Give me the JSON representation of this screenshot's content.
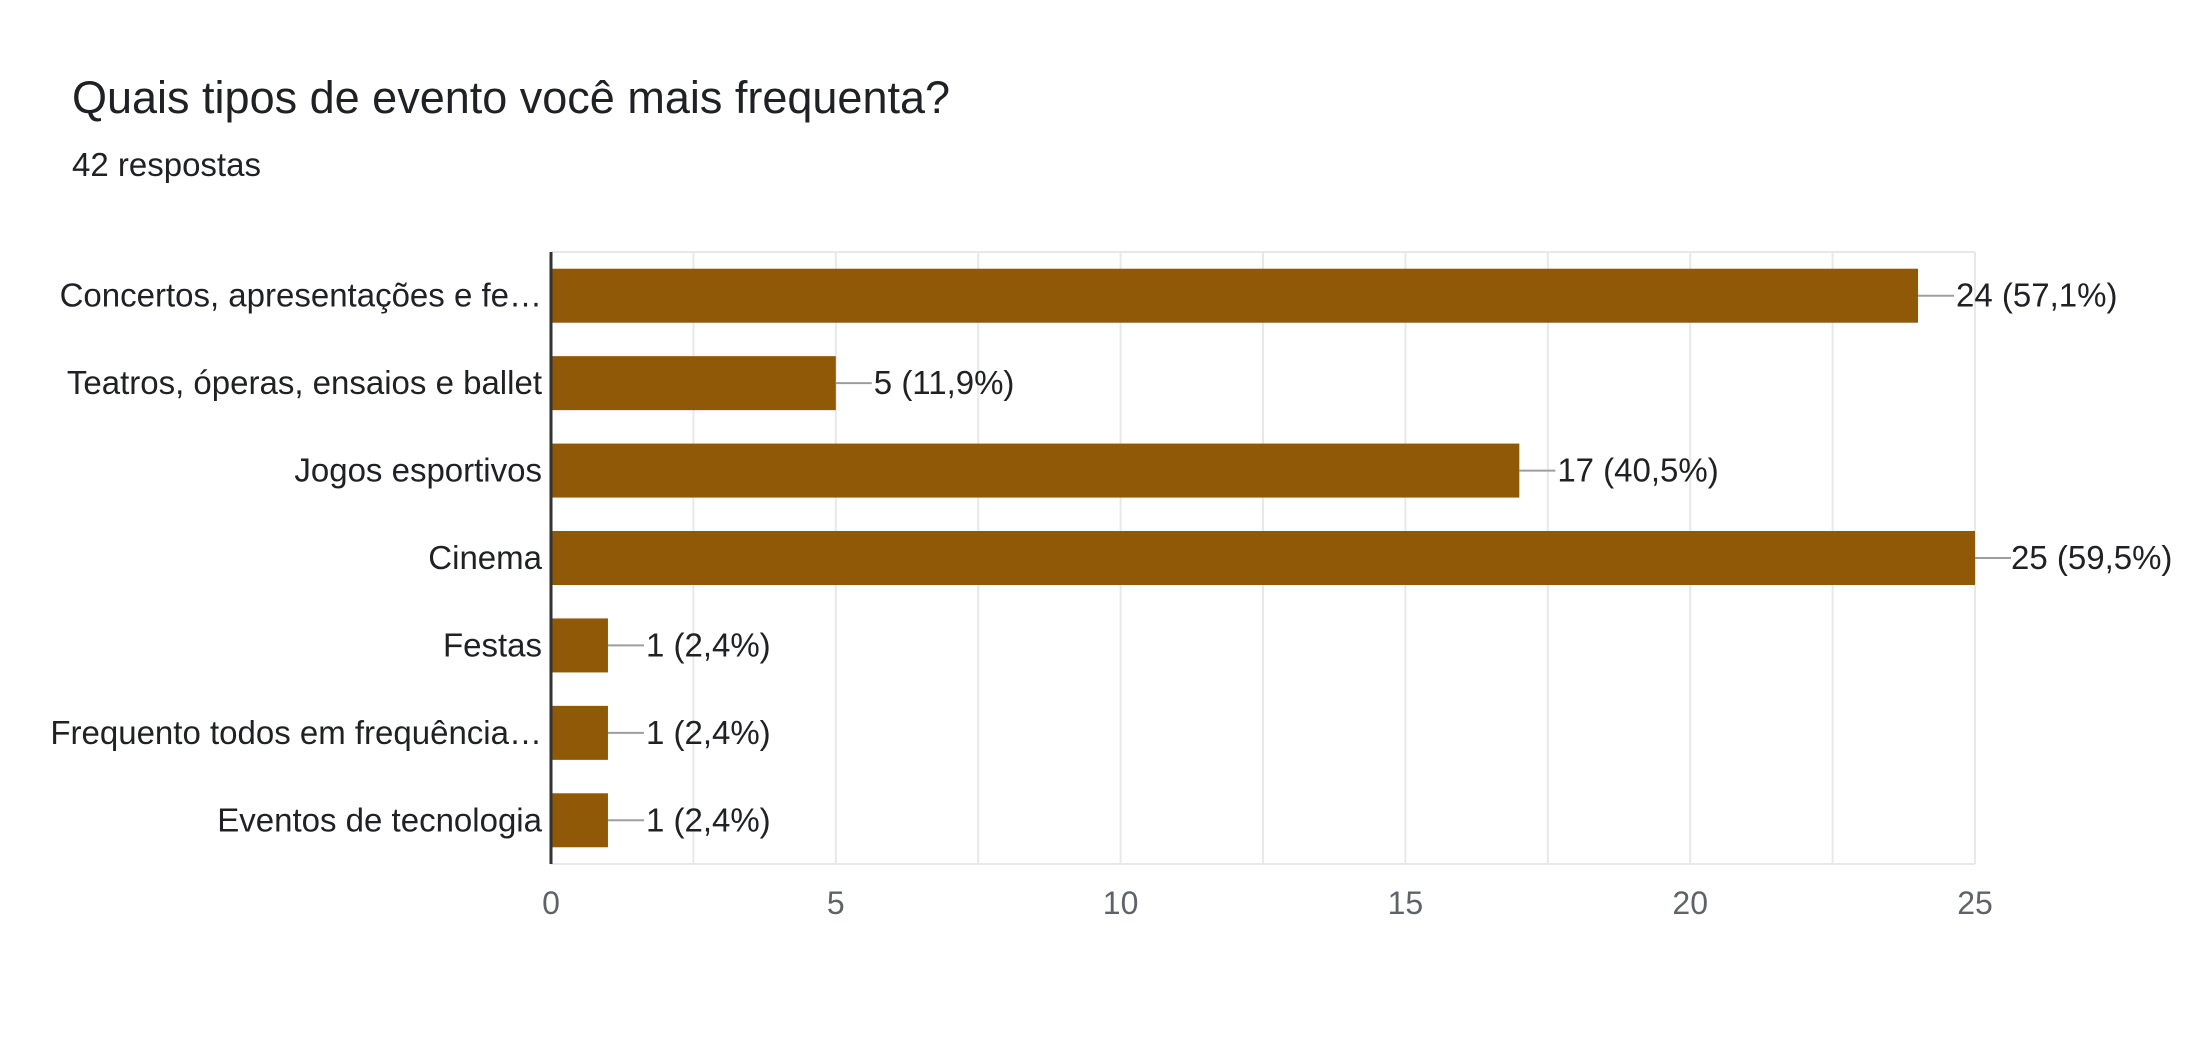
{
  "chart_data": {
    "type": "bar",
    "orientation": "horizontal",
    "title": "Quais tipos de evento você mais frequenta?",
    "subtitle": "42 respostas",
    "categories": [
      "Concertos, apresentações e fe…",
      "Teatros, óperas, ensaios e ballet",
      "Jogos esportivos",
      "Cinema",
      "Festas",
      "Frequento todos em frequência…",
      "Eventos de tecnologia"
    ],
    "values": [
      24,
      5,
      17,
      25,
      1,
      1,
      1
    ],
    "value_labels": [
      "24 (57,1%)",
      "5 (11,9%)",
      "17 (40,5%)",
      "25 (59,5%)",
      "1 (2,4%)",
      "1 (2,4%)",
      "1 (2,4%)"
    ],
    "xlim": [
      0,
      25
    ],
    "xticks": [
      0,
      5,
      10,
      15,
      20,
      25
    ],
    "grid": true,
    "bar_color": "#8f5908",
    "grid_color": "#e8e8e8",
    "axis_color": "#333333",
    "leader_color": "#9e9e9e"
  }
}
